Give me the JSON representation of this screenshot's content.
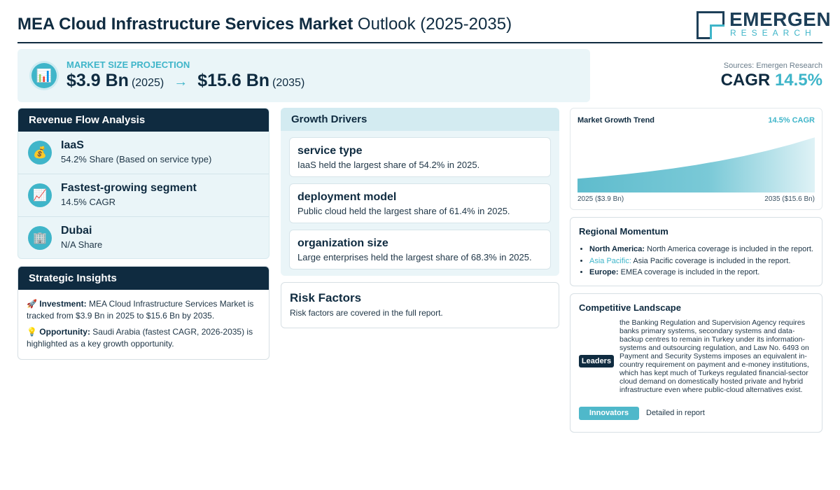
{
  "header": {
    "title_bold": "MEA Cloud Infrastructure Services Market",
    "title_light": "Outlook (2025-2035)",
    "logo_name": "EMERGEN",
    "logo_sub": "RESEARCH"
  },
  "projection": {
    "label": "MARKET SIZE PROJECTION",
    "icon": "bar-chart-icon",
    "start_value": "$3.9 Bn",
    "start_year": "(2025)",
    "arrow": "→",
    "end_value": "$15.6 Bn",
    "end_year": "(2035)"
  },
  "summary": {
    "sources": "Sources: Emergen Research",
    "cagr_label": "CAGR",
    "cagr_value": "14.5%"
  },
  "revenue_flow": {
    "title": "Revenue Flow Analysis",
    "items": [
      {
        "icon": "money-bag-icon",
        "glyph": "💰",
        "title": "IaaS",
        "sub": "54.2% Share (Based on service type)"
      },
      {
        "icon": "trend-up-icon",
        "glyph": "📈",
        "title": "Fastest-growing segment",
        "sub": "14.5% CAGR"
      },
      {
        "icon": "building-icon",
        "glyph": "🏢",
        "title": "Dubai",
        "sub": "N/A Share"
      }
    ]
  },
  "insights": {
    "title": "Strategic Insights",
    "investment_icon": "🚀",
    "investment_label": "Investment:",
    "investment_text": "MEA Cloud Infrastructure Services Market is tracked from $3.9 Bn in 2025 to $15.6 Bn by 2035.",
    "opportunity_icon": "💡",
    "opportunity_label": "Opportunity:",
    "opportunity_text": "Saudi Arabia (fastest CAGR, 2026-2035) is highlighted as a key growth opportunity."
  },
  "drivers": {
    "title": "Growth Drivers",
    "cards": [
      {
        "title": "service type",
        "text": "IaaS held the largest share of 54.2% in 2025."
      },
      {
        "title": "deployment model",
        "text": "Public cloud held the largest share of 61.4% in 2025."
      },
      {
        "title": "organization size",
        "text": "Large enterprises held the largest share of 68.3% in 2025."
      }
    ]
  },
  "risk": {
    "title": "Risk Factors",
    "text": "Risk factors are covered in the full report."
  },
  "trend": {
    "title": "Market Growth Trend",
    "cagr": "14.5% CAGR",
    "start_label": "2025 ($3.9 Bn)",
    "end_label": "2035 ($15.6 Bn)"
  },
  "chart_data": {
    "type": "area",
    "title": "Market Growth Trend",
    "x": [
      "2025",
      "2035"
    ],
    "series": [
      {
        "values": [
          3.9,
          15.6
        ]
      }
    ]
  },
  "regional": {
    "title": "Regional Momentum",
    "items": [
      {
        "label": "North America:",
        "text": "North America coverage is included in the report."
      },
      {
        "label": "Asia Pacific:",
        "text": "Asia Pacific coverage is included in the report."
      },
      {
        "label": "Europe:",
        "text": "EMEA coverage is included in the report."
      }
    ]
  },
  "competitive": {
    "title": "Competitive Landscape",
    "leaders_label": "Leaders",
    "leaders_text": "the Banking Regulation and Supervision Agency requires banks primary systems, secondary systems and data-backup centres to remain in Turkey under its information-systems and outsourcing regulation, and Law No. 6493 on Payment and Security Systems imposes an equivalent in-country requirement on payment and e-money institutions, which has kept much of Turkeys regulated financial-sector cloud demand on domestically hosted private and hybrid infrastructure even where public-cloud alternatives exist.",
    "innovators_label": "Innovators",
    "innovators_text": "Detailed in report"
  },
  "colors": {
    "navy": "#0f2b40",
    "teal": "#3fb5c9",
    "light_bg": "#eaf5f8"
  }
}
